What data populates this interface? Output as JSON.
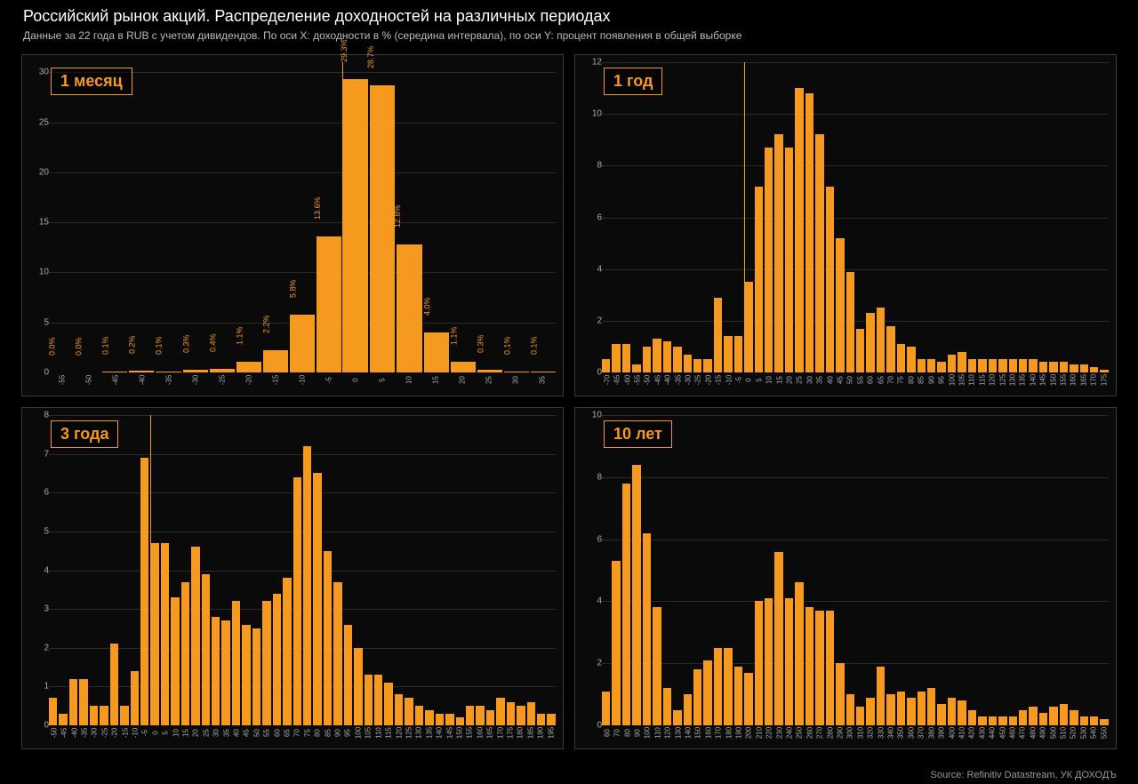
{
  "title": "Российский рынок акций. Распределение доходностей на различных периодах",
  "subtitle": "Данные за 22 года в RUB с учетом дивидендов. По оси X: доходности в % (середина интервала), по оси Y: процент появления в общей выборке",
  "source": "Source: Refinitiv Datastream, УК ДОХОДЪ",
  "colors": {
    "bar": "#f59a1f",
    "accent": "#f59a1f",
    "bg": "#000000",
    "panel_border": "#3a3a3a",
    "grid": "#2a2a2a",
    "tick_text": "#aaaaaa"
  },
  "panels": [
    {
      "id": "p1",
      "label": "1 месяц",
      "ymax": 31,
      "ytick_step": 5,
      "zero_at": "0",
      "show_bar_labels": true,
      "categories": [
        "-55",
        "-50",
        "-45",
        "-40",
        "-35",
        "-30",
        "-25",
        "-20",
        "-15",
        "-10",
        "-5",
        "0",
        "5",
        "10",
        "15",
        "20",
        "25",
        "30",
        "35"
      ],
      "values": [
        0.0,
        0.0,
        0.1,
        0.2,
        0.1,
        0.3,
        0.4,
        1.1,
        2.2,
        5.8,
        13.6,
        29.3,
        28.7,
        12.8,
        4.0,
        1.1,
        0.3,
        0.1,
        0.1
      ],
      "bar_labels": [
        "0.0%",
        "0.0%",
        "0.1%",
        "0.2%",
        "0.1%",
        "0.3%",
        "0.4%",
        "1.1%",
        "2.2%",
        "5.8%",
        "13.6%",
        "29.3%",
        "28.7%",
        "12.8%",
        "4.0%",
        "1.1%",
        "0.3%",
        "0.1%",
        "0.1%"
      ]
    },
    {
      "id": "p2",
      "label": "1 год",
      "ymax": 12,
      "ytick_step": 2,
      "zero_at": "0",
      "show_bar_labels": false,
      "categories": [
        "-70",
        "-65",
        "-60",
        "-55",
        "-50",
        "-45",
        "-40",
        "-35",
        "-30",
        "-25",
        "-20",
        "-15",
        "-10",
        "-5",
        "0",
        "5",
        "10",
        "15",
        "20",
        "25",
        "30",
        "35",
        "40",
        "45",
        "50",
        "55",
        "60",
        "65",
        "70",
        "75",
        "80",
        "85",
        "90",
        "95",
        "100",
        "105",
        "110",
        "115",
        "120",
        "125",
        "130",
        "135",
        "140",
        "145",
        "150",
        "155",
        "160",
        "165",
        "170",
        "175"
      ],
      "values": [
        0.5,
        1.1,
        1.1,
        0.3,
        1.0,
        1.3,
        1.2,
        1.0,
        0.7,
        0.5,
        0.5,
        2.9,
        1.4,
        1.4,
        3.5,
        7.2,
        8.7,
        9.2,
        8.7,
        11.0,
        10.8,
        9.2,
        7.2,
        5.2,
        3.9,
        1.7,
        2.3,
        2.5,
        1.8,
        1.1,
        1.0,
        0.5,
        0.5,
        0.4,
        0.7,
        0.8,
        0.5,
        0.5,
        0.5,
        0.5,
        0.5,
        0.5,
        0.5,
        0.4,
        0.4,
        0.4,
        0.3,
        0.3,
        0.2,
        0.1
      ]
    },
    {
      "id": "p3",
      "label": "3 года",
      "ymax": 8,
      "ytick_step": 1,
      "zero_at": "0",
      "show_bar_labels": false,
      "categories": [
        "-50",
        "-45",
        "-40",
        "-35",
        "-30",
        "-25",
        "-20",
        "-15",
        "-10",
        "-5",
        "0",
        "5",
        "10",
        "15",
        "20",
        "25",
        "30",
        "35",
        "40",
        "45",
        "50",
        "55",
        "60",
        "65",
        "70",
        "75",
        "80",
        "85",
        "90",
        "95",
        "100",
        "105",
        "110",
        "115",
        "120",
        "125",
        "130",
        "135",
        "140",
        "145",
        "150",
        "155",
        "160",
        "165",
        "170",
        "175",
        "180",
        "185",
        "190",
        "195"
      ],
      "values": [
        0.7,
        0.3,
        1.2,
        1.2,
        0.5,
        0.5,
        2.1,
        0.5,
        1.4,
        6.9,
        4.7,
        4.7,
        3.3,
        3.7,
        4.6,
        3.9,
        2.8,
        2.7,
        3.2,
        2.6,
        2.5,
        3.2,
        3.4,
        3.8,
        6.4,
        7.2,
        6.5,
        4.5,
        3.7,
        2.6,
        2.0,
        1.3,
        1.3,
        1.1,
        0.8,
        0.7,
        0.5,
        0.4,
        0.3,
        0.3,
        0.2,
        0.5,
        0.5,
        0.4,
        0.7,
        0.6,
        0.5,
        0.6,
        0.3,
        0.3
      ]
    },
    {
      "id": "p4",
      "label": "10 лет",
      "ymax": 10,
      "ytick_step": 2,
      "zero_at": null,
      "show_bar_labels": false,
      "categories": [
        "60",
        "70",
        "80",
        "90",
        "100",
        "110",
        "120",
        "130",
        "140",
        "150",
        "160",
        "170",
        "180",
        "190",
        "200",
        "210",
        "220",
        "230",
        "240",
        "250",
        "260",
        "270",
        "280",
        "290",
        "300",
        "310",
        "320",
        "330",
        "340",
        "350",
        "360",
        "370",
        "380",
        "390",
        "400",
        "410",
        "420",
        "430",
        "440",
        "450",
        "460",
        "470",
        "480",
        "490",
        "500",
        "510",
        "520",
        "530",
        "540",
        "550"
      ],
      "values": [
        1.1,
        5.3,
        7.8,
        8.4,
        6.2,
        3.8,
        1.2,
        0.5,
        1.0,
        1.8,
        2.1,
        2.5,
        2.5,
        1.9,
        1.7,
        4.0,
        4.1,
        5.6,
        4.1,
        4.6,
        3.8,
        3.7,
        3.7,
        2.0,
        1.0,
        0.6,
        0.9,
        1.9,
        1.0,
        1.1,
        0.9,
        1.1,
        1.2,
        0.7,
        0.9,
        0.8,
        0.5,
        0.3,
        0.3,
        0.3,
        0.3,
        0.5,
        0.6,
        0.4,
        0.6,
        0.7,
        0.5,
        0.3,
        0.3,
        0.2
      ]
    }
  ]
}
